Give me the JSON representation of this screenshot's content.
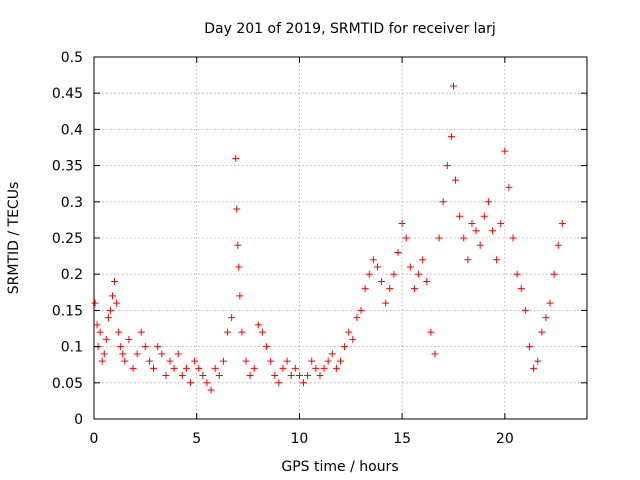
{
  "chart_data": {
    "type": "scatter",
    "title": "Day 201 of 2019, SRMTID for receiver larj",
    "xlabel": "GPS time / hours",
    "ylabel": "SRMTID / TECUs",
    "xlim": [
      0,
      24
    ],
    "ylim": [
      0,
      0.5
    ],
    "x_ticks": [
      0,
      5,
      10,
      15,
      20
    ],
    "x_tick_labels": [
      "0",
      "5",
      "10",
      "15",
      "20"
    ],
    "y_ticks": [
      0,
      0.05,
      0.1,
      0.15,
      0.2,
      0.25,
      0.3,
      0.35,
      0.4,
      0.45,
      0.5
    ],
    "y_tick_labels": [
      "0",
      "0.05",
      "0.1",
      "0.15",
      "0.2",
      "0.25",
      "0.3",
      "0.35",
      "0.4",
      "0.45",
      "0.5"
    ],
    "grid": true,
    "marker": "plus",
    "color": "#ff0000",
    "series": [
      {
        "name": "SRMTID",
        "x": [
          0.05,
          0.15,
          0.2,
          0.3,
          0.4,
          0.5,
          0.6,
          0.7,
          0.8,
          0.9,
          1.0,
          1.1,
          1.2,
          1.3,
          1.4,
          1.5,
          1.7,
          1.9,
          2.1,
          2.3,
          2.5,
          2.7,
          2.9,
          3.1,
          3.3,
          3.5,
          3.7,
          3.9,
          4.1,
          4.3,
          4.5,
          4.7,
          4.9,
          5.1,
          5.3,
          5.5,
          5.7,
          5.9,
          6.1,
          6.3,
          6.5,
          6.7,
          6.9,
          6.95,
          7.0,
          7.05,
          7.1,
          7.2,
          7.4,
          7.6,
          7.8,
          8.0,
          8.2,
          8.4,
          8.6,
          8.8,
          9.0,
          9.2,
          9.4,
          9.6,
          9.8,
          10.0,
          10.2,
          10.4,
          10.6,
          10.8,
          11.0,
          11.2,
          11.4,
          11.6,
          11.8,
          12.0,
          12.2,
          12.4,
          12.6,
          12.8,
          13.0,
          13.2,
          13.4,
          13.6,
          13.8,
          14.0,
          14.2,
          14.4,
          14.6,
          14.8,
          15.0,
          15.2,
          15.4,
          15.6,
          15.8,
          16.0,
          16.2,
          16.4,
          16.6,
          16.8,
          17.0,
          17.2,
          17.4,
          17.5,
          17.6,
          17.8,
          18.0,
          18.2,
          18.4,
          18.6,
          18.8,
          19.0,
          19.2,
          19.4,
          19.6,
          19.8,
          20.0,
          20.2,
          20.4,
          20.6,
          20.8,
          21.0,
          21.2,
          21.4,
          21.6,
          21.8,
          22.0,
          22.2,
          22.4,
          22.6,
          22.8
        ],
        "y": [
          0.16,
          0.13,
          0.1,
          0.12,
          0.08,
          0.09,
          0.11,
          0.14,
          0.15,
          0.17,
          0.19,
          0.16,
          0.12,
          0.1,
          0.09,
          0.08,
          0.11,
          0.07,
          0.09,
          0.12,
          0.1,
          0.08,
          0.07,
          0.1,
          0.09,
          0.06,
          0.08,
          0.07,
          0.09,
          0.06,
          0.07,
          0.05,
          0.08,
          0.07,
          0.06,
          0.05,
          0.04,
          0.07,
          0.06,
          0.08,
          0.12,
          0.14,
          0.36,
          0.29,
          0.24,
          0.21,
          0.17,
          0.12,
          0.08,
          0.06,
          0.07,
          0.13,
          0.12,
          0.1,
          0.08,
          0.06,
          0.05,
          0.07,
          0.08,
          0.06,
          0.07,
          0.06,
          0.05,
          0.06,
          0.08,
          0.07,
          0.06,
          0.07,
          0.08,
          0.09,
          0.07,
          0.08,
          0.1,
          0.12,
          0.11,
          0.14,
          0.15,
          0.18,
          0.2,
          0.22,
          0.21,
          0.19,
          0.16,
          0.18,
          0.2,
          0.23,
          0.27,
          0.25,
          0.21,
          0.18,
          0.2,
          0.22,
          0.19,
          0.12,
          0.09,
          0.25,
          0.3,
          0.35,
          0.39,
          0.46,
          0.33,
          0.28,
          0.25,
          0.22,
          0.27,
          0.26,
          0.24,
          0.28,
          0.3,
          0.26,
          0.22,
          0.27,
          0.37,
          0.32,
          0.25,
          0.2,
          0.18,
          0.15,
          0.1,
          0.07,
          0.08,
          0.12,
          0.14,
          0.16,
          0.2,
          0.24,
          0.27
        ]
      }
    ]
  }
}
